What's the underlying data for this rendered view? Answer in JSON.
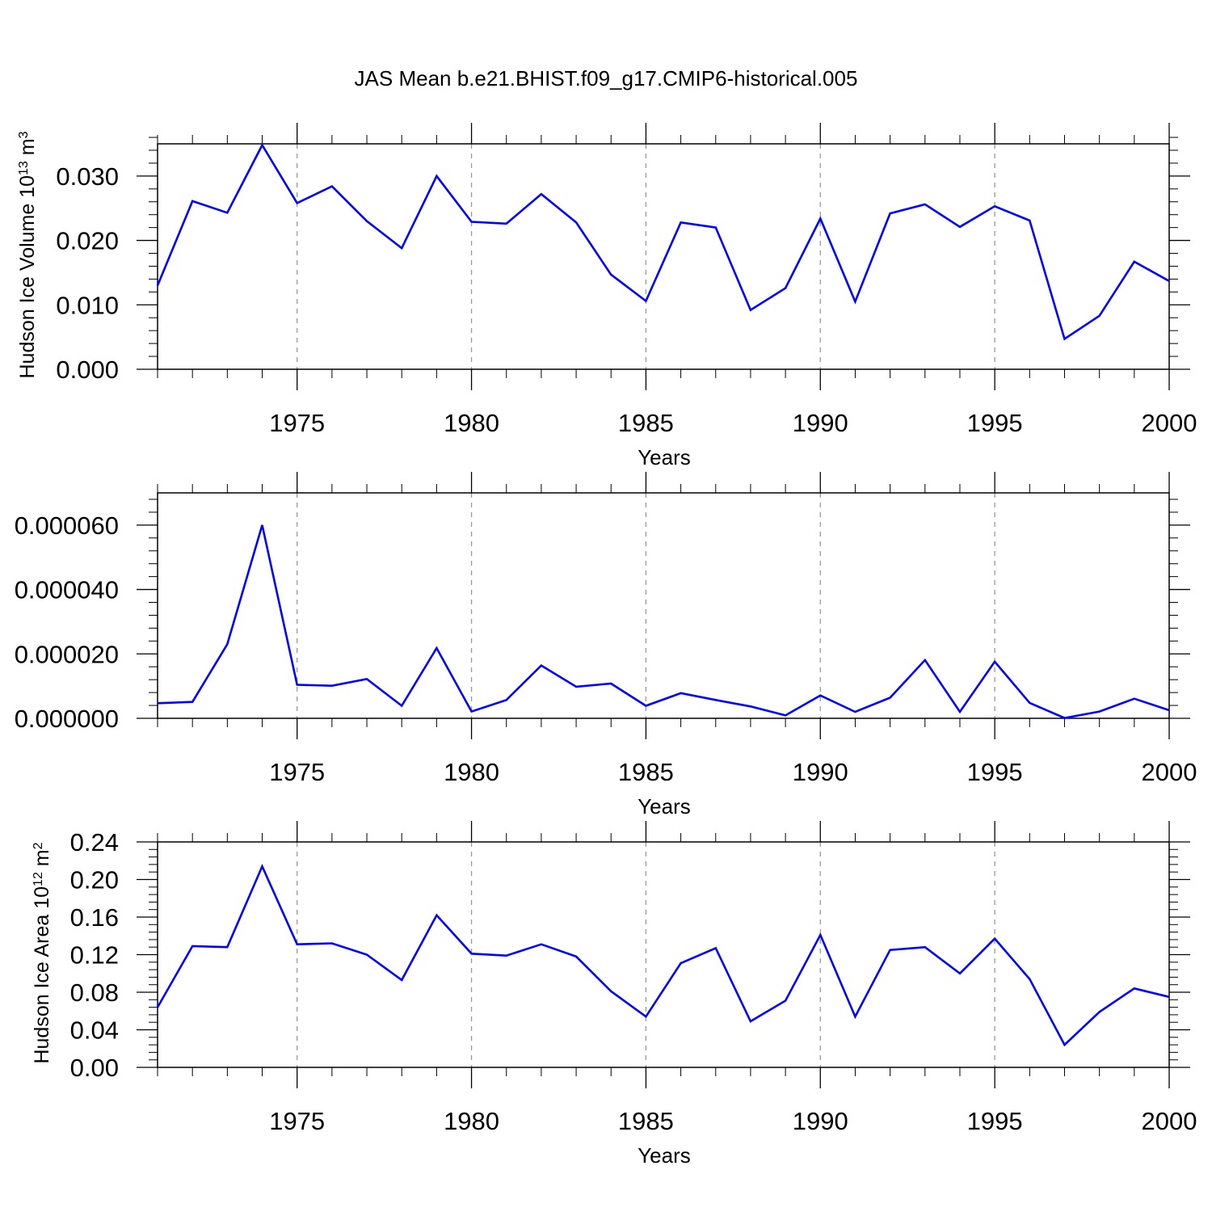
{
  "figure": {
    "title": "JAS Mean b.e21.BHIST.f09_g17.CMIP6-historical.005"
  },
  "chart_data": [
    {
      "type": "line",
      "title": "JAS Mean b.e21.BHIST.f09_g17.CMIP6-historical.005",
      "xlabel": "Years",
      "ylabel": "Hudson Ice Volume 10",
      "ylabel_exp": "13",
      "ylabel_unit": " m",
      "ylabel_unit_exp": "3",
      "x": [
        1971,
        1972,
        1973,
        1974,
        1975,
        1976,
        1977,
        1978,
        1979,
        1980,
        1981,
        1982,
        1983,
        1984,
        1985,
        1986,
        1987,
        1988,
        1989,
        1990,
        1991,
        1992,
        1993,
        1994,
        1995,
        1996,
        1997,
        1998,
        1999,
        2000
      ],
      "series": [
        {
          "values": [
            0.013,
            0.0261,
            0.0243,
            0.0348,
            0.0258,
            0.0284,
            0.023,
            0.0188,
            0.03,
            0.0229,
            0.0226,
            0.0272,
            0.0228,
            0.0147,
            0.0106,
            0.0228,
            0.022,
            0.0092,
            0.0126,
            0.0234,
            0.0105,
            0.0242,
            0.0256,
            0.0221,
            0.0253,
            0.0231,
            0.0047,
            0.0083,
            0.0167,
            0.0137
          ],
          "color": "#0000ff"
        }
      ],
      "xlim": [
        1971,
        2000
      ],
      "ylim": [
        0,
        0.035
      ],
      "xticks": [
        "1975",
        "1980",
        "1985",
        "1990",
        "1995",
        "2000"
      ],
      "yticks": [
        "0.000",
        "0.010",
        "0.020",
        "0.030"
      ],
      "grid": "vertical dashed at major x ticks"
    },
    {
      "type": "line",
      "xlabel": "Years",
      "ylabel": "",
      "x": [
        1971,
        1972,
        1973,
        1974,
        1975,
        1976,
        1977,
        1978,
        1979,
        1980,
        1981,
        1982,
        1983,
        1984,
        1985,
        1986,
        1987,
        1988,
        1989,
        1990,
        1991,
        1992,
        1993,
        1994,
        1995,
        1996,
        1997,
        1998,
        1999,
        2000
      ],
      "series": [
        {
          "values": [
            4.7e-06,
            5.1e-06,
            2.3e-05,
            6e-05,
            1.04e-05,
            1.01e-05,
            1.22e-05,
            3.9e-06,
            2.18e-05,
            2.1e-06,
            5.7e-06,
            1.64e-05,
            9.8e-06,
            1.08e-05,
            3.9e-06,
            7.8e-06,
            5.7e-06,
            3.7e-06,
            9e-07,
            7.1e-06,
            2e-06,
            6.4e-06,
            1.81e-05,
            2e-06,
            1.76e-05,
            4.8e-06,
            1e-07,
            2.1e-06,
            6.1e-06,
            2.5e-06
          ],
          "color": "#0000ff"
        }
      ],
      "xlim": [
        1971,
        2000
      ],
      "ylim": [
        0,
        7e-05
      ],
      "xticks": [
        "1975",
        "1980",
        "1985",
        "1990",
        "1995",
        "2000"
      ],
      "yticks": [
        "0.000000",
        "0.000020",
        "0.000040",
        "0.000060"
      ],
      "grid": "vertical dashed at major x ticks"
    },
    {
      "type": "line",
      "xlabel": "Years",
      "ylabel": "Hudson Ice Area 10",
      "ylabel_exp": "12",
      "ylabel_unit": " m",
      "ylabel_unit_exp": "2",
      "x": [
        1971,
        1972,
        1973,
        1974,
        1975,
        1976,
        1977,
        1978,
        1979,
        1980,
        1981,
        1982,
        1983,
        1984,
        1985,
        1986,
        1987,
        1988,
        1989,
        1990,
        1991,
        1992,
        1993,
        1994,
        1995,
        1996,
        1997,
        1998,
        1999,
        2000
      ],
      "series": [
        {
          "values": [
            0.064,
            0.129,
            0.128,
            0.214,
            0.131,
            0.132,
            0.12,
            0.093,
            0.162,
            0.121,
            0.119,
            0.131,
            0.118,
            0.081,
            0.054,
            0.111,
            0.127,
            0.049,
            0.071,
            0.141,
            0.054,
            0.125,
            0.128,
            0.1,
            0.137,
            0.094,
            0.024,
            0.059,
            0.084,
            0.075
          ],
          "color": "#0000ff"
        }
      ],
      "xlim": [
        1971,
        2000
      ],
      "ylim": [
        0,
        0.24
      ],
      "xticks": [
        "1975",
        "1980",
        "1985",
        "1990",
        "1995",
        "2000"
      ],
      "yticks": [
        "0.00",
        "0.04",
        "0.08",
        "0.12",
        "0.16",
        "0.20",
        "0.24"
      ],
      "grid": "vertical dashed at major x ticks"
    }
  ]
}
